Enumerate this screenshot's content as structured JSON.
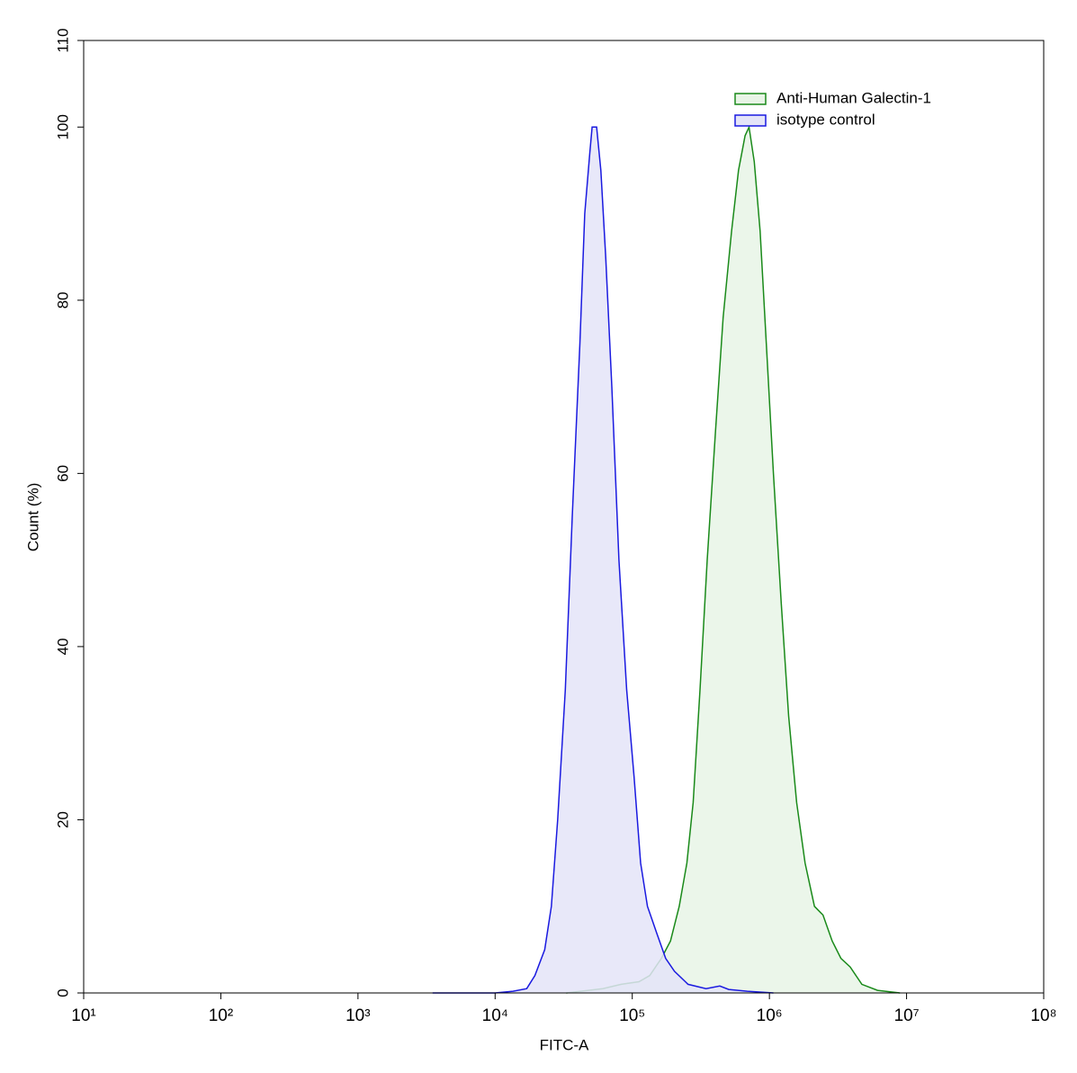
{
  "chart_data": {
    "type": "area",
    "x_label": "FITC-A",
    "y_label": "Count  (%)",
    "xscale": "log",
    "legend": "upper right",
    "xlim": [
      10,
      100000000
    ],
    "ylim": [
      0,
      110
    ],
    "xticks": [
      {
        "value": 10,
        "label": "10¹"
      },
      {
        "value": 100,
        "label": "10²"
      },
      {
        "value": 1000,
        "label": "10³"
      },
      {
        "value": 10000,
        "label": "10⁴"
      },
      {
        "value": 100000,
        "label": "10⁵"
      },
      {
        "value": 1000000,
        "label": "10⁶"
      },
      {
        "value": 10000000,
        "label": "10⁷"
      },
      {
        "value": 100000000,
        "label": "10⁸"
      }
    ],
    "yticks": [
      0,
      20,
      40,
      60,
      80,
      100,
      110
    ],
    "series": [
      {
        "name": "Anti-Human Galectin-1",
        "color": "#1a8a1a",
        "fill": "#e8f4e6",
        "x": [
          33000,
          61000,
          83000,
          112000,
          134000,
          163000,
          190000,
          220000,
          250000,
          278000,
          312000,
          352000,
          405000,
          460000,
          530000,
          595000,
          665000,
          710000,
          775000,
          855000,
          950000,
          1070000,
          1220000,
          1380000,
          1580000,
          1820000,
          2130000,
          2460000,
          2870000,
          3320000,
          3880000,
          4720000,
          6140000,
          8940000
        ],
        "values": [
          0,
          0.5,
          1,
          1.3,
          2,
          4,
          6,
          10,
          15,
          22,
          35,
          50,
          65,
          78,
          88,
          95,
          99,
          100,
          96,
          88,
          75,
          60,
          45,
          32,
          22,
          15,
          10,
          9,
          6,
          4,
          3,
          1,
          0.3,
          0
        ]
      },
      {
        "name": "isotype control",
        "color": "#1a1ae0",
        "fill": "#e4e4f8",
        "x": [
          3500,
          10000,
          13500,
          17000,
          19500,
          23000,
          25700,
          28600,
          32500,
          36500,
          41500,
          45000,
          49000,
          51000,
          55000,
          59000,
          64000,
          71000,
          80000,
          91000,
          103000,
          115000,
          129000,
          150000,
          175000,
          203000,
          255000,
          345000,
          435000,
          505000,
          690000,
          1070000
        ],
        "values": [
          0,
          0,
          0.2,
          0.5,
          2,
          5,
          10,
          20,
          35,
          55,
          75,
          90,
          97,
          100,
          100,
          95,
          85,
          70,
          50,
          35,
          25,
          15,
          10,
          7,
          4,
          2.5,
          1,
          0.5,
          0.8,
          0.4,
          0.2,
          0
        ]
      }
    ]
  }
}
